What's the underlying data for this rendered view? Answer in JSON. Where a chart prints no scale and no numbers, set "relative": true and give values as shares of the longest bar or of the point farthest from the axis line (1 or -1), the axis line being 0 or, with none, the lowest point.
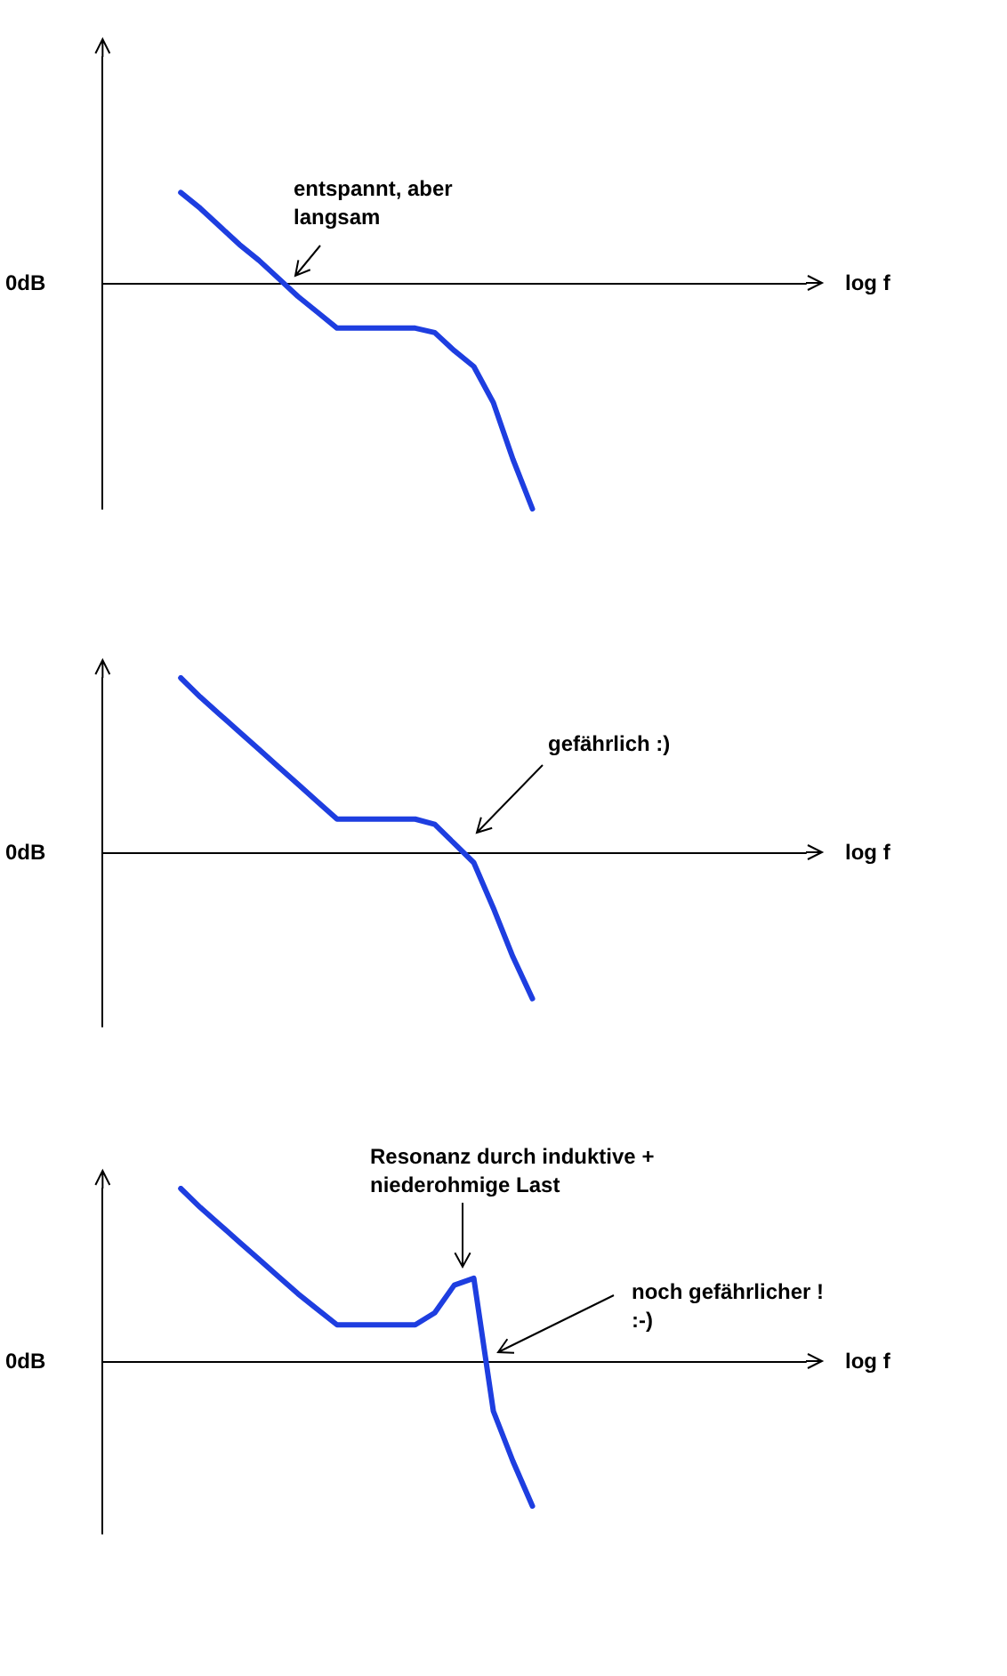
{
  "chart_data": [
    {
      "type": "line",
      "relative": true,
      "xlabel": "log f",
      "ylabel": "0dB",
      "annotations": [
        "entspannt, aber\nlangsam"
      ],
      "grid": false,
      "marker": "none",
      "color": "#1e3ee0",
      "categories": [
        null,
        null,
        null,
        null,
        null,
        null,
        null,
        null,
        null,
        null,
        null,
        null,
        null,
        null,
        null,
        null,
        null,
        null,
        null,
        null,
        null,
        null,
        null,
        null,
        null,
        null,
        null,
        null,
        null,
        null,
        null,
        null,
        null,
        null,
        null,
        null,
        null
      ],
      "values": [
        null,
        null,
        null,
        null,
        0.4,
        0.33,
        0.25,
        0.17,
        0.1,
        0.02,
        -0.06,
        -0.13,
        -0.2,
        -0.2,
        -0.2,
        -0.2,
        -0.2,
        -0.22,
        -0.3,
        -0.37,
        -0.53,
        -0.78,
        -1,
        null,
        null,
        null,
        null,
        null,
        null,
        null,
        null,
        null,
        null,
        null,
        null,
        null,
        null
      ]
    },
    {
      "type": "line",
      "relative": true,
      "xlabel": "log f",
      "ylabel": "0dB",
      "annotations": [
        "gefährlich :)"
      ],
      "grid": false,
      "marker": "none",
      "color": "#1e3ee0",
      "categories": [
        null,
        null,
        null,
        null,
        null,
        null,
        null,
        null,
        null,
        null,
        null,
        null,
        null,
        null,
        null,
        null,
        null,
        null,
        null,
        null,
        null,
        null,
        null,
        null,
        null,
        null,
        null,
        null,
        null,
        null,
        null,
        null,
        null,
        null,
        null,
        null,
        null
      ],
      "values": [
        null,
        null,
        null,
        null,
        1,
        0.89,
        0.79,
        0.69,
        0.59,
        0.49,
        0.39,
        0.29,
        0.19,
        0.19,
        0.19,
        0.19,
        0.19,
        0.16,
        0.05,
        -0.06,
        -0.32,
        -0.6,
        -0.84,
        null,
        null,
        null,
        null,
        null,
        null,
        null,
        null,
        null,
        null,
        null,
        null,
        null,
        null
      ]
    },
    {
      "type": "line",
      "relative": true,
      "xlabel": "log f",
      "ylabel": "0dB",
      "annotations": [
        "Resonanz durch induktive +\nniederohmige Last",
        "noch gefährlicher !\n:-)"
      ],
      "grid": false,
      "marker": "none",
      "color": "#1e3ee0",
      "categories": [
        null,
        null,
        null,
        null,
        null,
        null,
        null,
        null,
        null,
        null,
        null,
        null,
        null,
        null,
        null,
        null,
        null,
        null,
        null,
        null,
        null,
        null,
        null,
        null,
        null,
        null,
        null,
        null,
        null,
        null,
        null,
        null,
        null,
        null,
        null,
        null,
        null
      ],
      "values": [
        null,
        null,
        null,
        null,
        1,
        0.89,
        0.79,
        0.69,
        0.59,
        0.49,
        0.39,
        0.3,
        0.21,
        0.21,
        0.21,
        0.21,
        0.21,
        0.28,
        0.44,
        0.48,
        -0.29,
        -0.58,
        -0.84,
        null,
        null,
        null,
        null,
        null,
        null,
        null,
        null,
        null,
        null,
        null,
        null,
        null,
        null
      ]
    }
  ]
}
